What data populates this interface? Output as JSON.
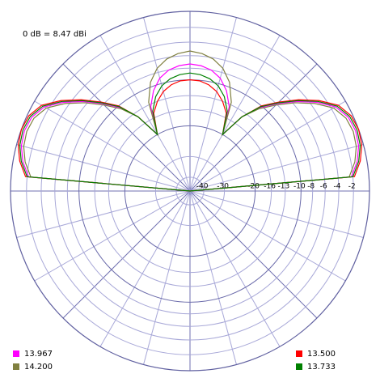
{
  "chart_data": {
    "type": "polar",
    "annotation": "0 dB = 8.47 dBi",
    "theta": [
      0,
      5,
      10,
      15,
      20,
      25,
      30,
      35,
      40,
      45,
      50,
      55,
      60,
      65,
      70,
      75,
      80,
      85,
      90,
      95,
      100,
      105,
      110,
      115,
      120,
      125,
      130,
      135,
      140,
      145,
      150,
      155,
      160,
      165,
      170,
      175,
      180
    ],
    "rlim": [
      -50,
      0
    ],
    "rticks": [
      -2,
      -4,
      -6,
      -8,
      -10,
      -13,
      -16,
      -20,
      -30,
      -40
    ],
    "grid": true,
    "series": [
      {
        "name": "13.967",
        "color": "#ff00ff",
        "values": [
          -50,
          -2.2,
          -1.2,
          -0.6,
          -0.4,
          -0.6,
          -1.4,
          -3.2,
          -5.4,
          -7.9,
          -10.4,
          -14,
          -20,
          -13.5,
          -10.8,
          -9,
          -8,
          -7.5,
          -7.3,
          -7.5,
          -8,
          -9,
          -10.8,
          -13.5,
          -20,
          -14,
          -10.4,
          -7.9,
          -5.4,
          -3.2,
          -1.4,
          -0.6,
          -0.4,
          -0.6,
          -1.2,
          -2.2,
          -50
        ]
      },
      {
        "name": "14.200",
        "color": "#808040",
        "values": [
          -50,
          -2.5,
          -1.5,
          -0.9,
          -0.7,
          -0.9,
          -1.7,
          -3.5,
          -5.7,
          -8.2,
          -10.7,
          -14,
          -20,
          -12.5,
          -9.2,
          -7.3,
          -6.2,
          -5.6,
          -5.3,
          -5.6,
          -6.2,
          -7.3,
          -9.2,
          -12.5,
          -20,
          -14,
          -10.7,
          -8.2,
          -5.7,
          -3.5,
          -1.7,
          -0.9,
          -0.7,
          -0.9,
          -1.5,
          -2.5,
          -50
        ]
      },
      {
        "name": "13.500",
        "color": "#ff0000",
        "values": [
          -50,
          -1.8,
          -0.8,
          -0.2,
          0,
          -0.2,
          -1,
          -2.8,
          -5,
          -7.5,
          -10,
          -14,
          -20,
          -15,
          -13,
          -11.5,
          -10.6,
          -10.1,
          -10,
          -10.1,
          -10.6,
          -11.5,
          -13,
          -15,
          -20,
          -14,
          -10,
          -7.5,
          -5,
          -2.8,
          -1,
          -0.2,
          0,
          -0.2,
          -0.8,
          -1.8,
          -50
        ]
      },
      {
        "name": "13.733",
        "color": "#008000",
        "values": [
          -50,
          -2,
          -1,
          -0.4,
          -0.2,
          -0.4,
          -1.2,
          -3,
          -5.2,
          -7.7,
          -10.2,
          -14,
          -20,
          -14.5,
          -12,
          -10.4,
          -9.5,
          -9,
          -8.8,
          -9,
          -9.5,
          -10.4,
          -12,
          -14.5,
          -20,
          -14,
          -10.2,
          -7.7,
          -5.2,
          -3,
          -1.2,
          -0.4,
          -0.2,
          -0.4,
          -1,
          -2,
          -50
        ]
      }
    ]
  }
}
